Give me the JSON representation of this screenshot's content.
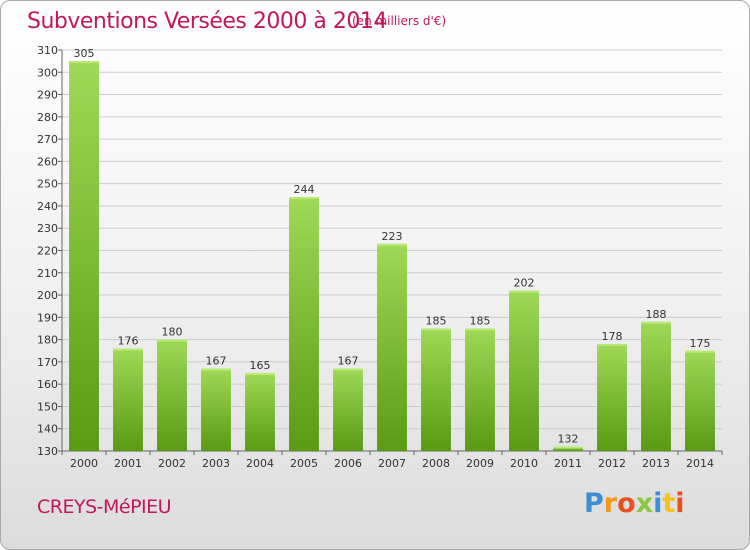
{
  "header": {
    "title": "Subventions Versées 2000 à 2014",
    "unit": "(en milliers d'€)"
  },
  "footer": {
    "place": "CREYS-MéPIEU",
    "logo_text": "Proxiti"
  },
  "colors": {
    "title": "#c2185b",
    "bar_light": "#9fd957",
    "bar_dark": "#5a9a14",
    "grid": "#cccccc"
  },
  "chart_data": {
    "type": "bar",
    "title": "Subventions Versées 2000 à 2014",
    "categories": [
      "2000",
      "2001",
      "2002",
      "2003",
      "2004",
      "2005",
      "2006",
      "2007",
      "2008",
      "2009",
      "2010",
      "2011",
      "2012",
      "2013",
      "2014"
    ],
    "values": [
      305,
      176,
      180,
      167,
      165,
      244,
      167,
      223,
      185,
      185,
      202,
      132,
      178,
      188,
      175
    ],
    "ylim": [
      130,
      310
    ],
    "yticks": [
      130,
      140,
      150,
      160,
      170,
      180,
      190,
      200,
      210,
      220,
      230,
      240,
      250,
      260,
      270,
      280,
      290,
      300,
      310
    ],
    "grid": true,
    "data_labels": true
  }
}
